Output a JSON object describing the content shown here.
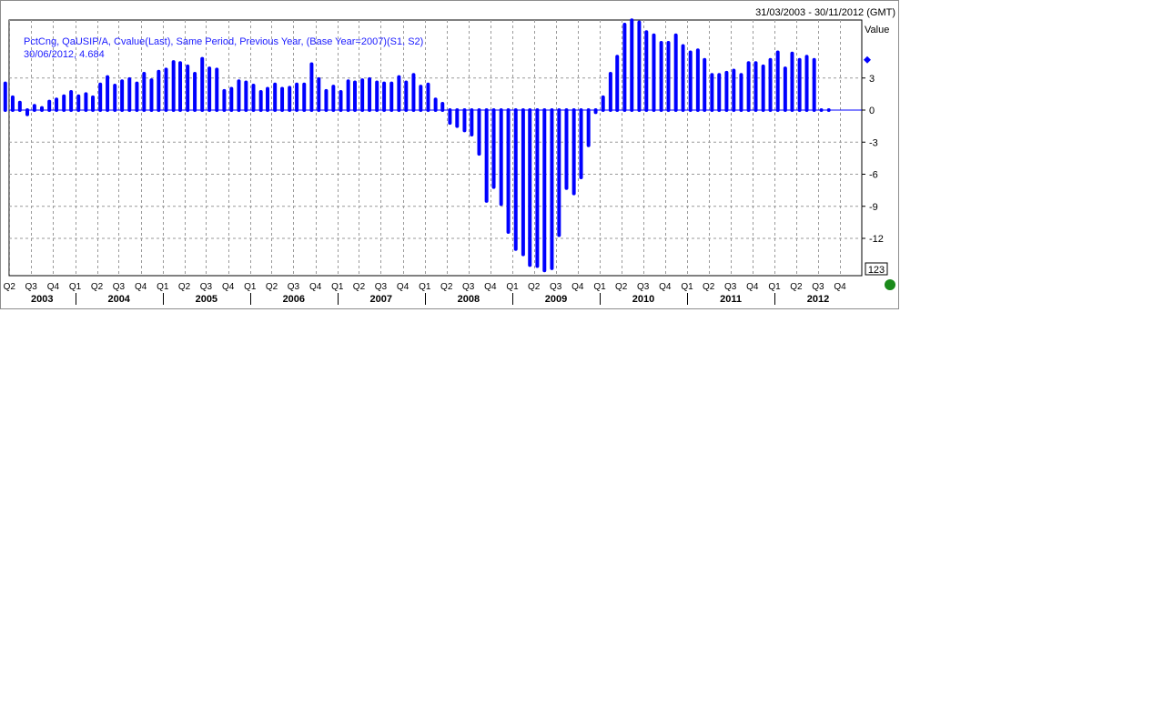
{
  "header": {
    "date_range": "31/03/2003 - 30/11/2012 (GMT)"
  },
  "legend": {
    "series_name": "PctCng, QaUSIP/A, Cvalue(Last), Same Period, Previous Year, (Base Year=2007)(S1, S2)",
    "last_point": "30/06/2012, 4.684"
  },
  "axis": {
    "title": "Value",
    "last_value_box": "123"
  },
  "status_indicator_color": "#1a8a1a",
  "chart_data": {
    "type": "bar",
    "ylim": [
      -15,
      8.5
    ],
    "yticks": [
      3,
      0,
      -3,
      -6,
      -9,
      -12
    ],
    "xlim": [
      "2003-03-31",
      "2012-12-31"
    ],
    "x_tick_labels": [
      {
        "label": "Q2",
        "date": "2003-04-01"
      },
      {
        "label": "Q3",
        "date": "2003-07-01"
      },
      {
        "label": "Q4",
        "date": "2003-10-01"
      },
      {
        "label": "Q1",
        "date": "2004-01-01"
      },
      {
        "label": "Q2",
        "date": "2004-04-01"
      },
      {
        "label": "Q3",
        "date": "2004-07-01"
      },
      {
        "label": "Q4",
        "date": "2004-10-01"
      },
      {
        "label": "Q1",
        "date": "2005-01-01"
      },
      {
        "label": "Q2",
        "date": "2005-04-01"
      },
      {
        "label": "Q3",
        "date": "2005-07-01"
      },
      {
        "label": "Q4",
        "date": "2005-10-01"
      },
      {
        "label": "Q1",
        "date": "2006-01-01"
      },
      {
        "label": "Q2",
        "date": "2006-04-01"
      },
      {
        "label": "Q3",
        "date": "2006-07-01"
      },
      {
        "label": "Q4",
        "date": "2006-10-01"
      },
      {
        "label": "Q1",
        "date": "2007-01-01"
      },
      {
        "label": "Q2",
        "date": "2007-04-01"
      },
      {
        "label": "Q3",
        "date": "2007-07-01"
      },
      {
        "label": "Q4",
        "date": "2007-10-01"
      },
      {
        "label": "Q1",
        "date": "2008-01-01"
      },
      {
        "label": "Q2",
        "date": "2008-04-01"
      },
      {
        "label": "Q3",
        "date": "2008-07-01"
      },
      {
        "label": "Q4",
        "date": "2008-10-01"
      },
      {
        "label": "Q1",
        "date": "2009-01-01"
      },
      {
        "label": "Q2",
        "date": "2009-04-01"
      },
      {
        "label": "Q3",
        "date": "2009-07-01"
      },
      {
        "label": "Q4",
        "date": "2009-10-01"
      },
      {
        "label": "Q1",
        "date": "2010-01-01"
      },
      {
        "label": "Q2",
        "date": "2010-04-01"
      },
      {
        "label": "Q3",
        "date": "2010-07-01"
      },
      {
        "label": "Q4",
        "date": "2010-10-01"
      },
      {
        "label": "Q1",
        "date": "2011-01-01"
      },
      {
        "label": "Q2",
        "date": "2011-04-01"
      },
      {
        "label": "Q3",
        "date": "2011-07-01"
      },
      {
        "label": "Q4",
        "date": "2011-10-01"
      },
      {
        "label": "Q1",
        "date": "2012-01-01"
      },
      {
        "label": "Q2",
        "date": "2012-04-01"
      },
      {
        "label": "Q3",
        "date": "2012-07-01"
      },
      {
        "label": "Q4",
        "date": "2012-10-01"
      }
    ],
    "year_labels": [
      {
        "label": "2003",
        "start": "2003-03-31",
        "end": "2004-01-01"
      },
      {
        "label": "2004",
        "start": "2004-01-01",
        "end": "2005-01-01"
      },
      {
        "label": "2005",
        "start": "2005-01-01",
        "end": "2006-01-01"
      },
      {
        "label": "2006",
        "start": "2006-01-01",
        "end": "2007-01-01"
      },
      {
        "label": "2007",
        "start": "2007-01-01",
        "end": "2008-01-01"
      },
      {
        "label": "2008",
        "start": "2008-01-01",
        "end": "2009-01-01"
      },
      {
        "label": "2009",
        "start": "2009-01-01",
        "end": "2010-01-01"
      },
      {
        "label": "2010",
        "start": "2010-01-01",
        "end": "2011-01-01"
      },
      {
        "label": "2011",
        "start": "2011-01-01",
        "end": "2012-01-01"
      },
      {
        "label": "2012",
        "start": "2012-01-01",
        "end": "2012-12-31"
      }
    ],
    "series": [
      {
        "color": "#0000ff",
        "x": [
          "2003-03",
          "2003-04",
          "2003-05",
          "2003-06",
          "2003-07",
          "2003-08",
          "2003-09",
          "2003-10",
          "2003-11",
          "2003-12",
          "2004-01",
          "2004-02",
          "2004-03",
          "2004-04",
          "2004-05",
          "2004-06",
          "2004-07",
          "2004-08",
          "2004-09",
          "2004-10",
          "2004-11",
          "2004-12",
          "2005-01",
          "2005-02",
          "2005-03",
          "2005-04",
          "2005-05",
          "2005-06",
          "2005-07",
          "2005-08",
          "2005-09",
          "2005-10",
          "2005-11",
          "2005-12",
          "2006-01",
          "2006-02",
          "2006-03",
          "2006-04",
          "2006-05",
          "2006-06",
          "2006-07",
          "2006-08",
          "2006-09",
          "2006-10",
          "2006-11",
          "2006-12",
          "2007-01",
          "2007-02",
          "2007-03",
          "2007-04",
          "2007-05",
          "2007-06",
          "2007-07",
          "2007-08",
          "2007-09",
          "2007-10",
          "2007-11",
          "2007-12",
          "2008-01",
          "2008-02",
          "2008-03",
          "2008-04",
          "2008-05",
          "2008-06",
          "2008-07",
          "2008-08",
          "2008-09",
          "2008-10",
          "2008-11",
          "2008-12",
          "2009-01",
          "2009-02",
          "2009-03",
          "2009-04",
          "2009-05",
          "2009-06",
          "2009-07",
          "2009-08",
          "2009-09",
          "2009-10",
          "2009-11",
          "2009-12",
          "2010-01",
          "2010-02",
          "2010-03",
          "2010-04",
          "2010-05",
          "2010-06",
          "2010-07",
          "2010-08",
          "2010-09",
          "2010-10",
          "2010-11",
          "2010-12",
          "2011-01",
          "2011-02",
          "2011-03",
          "2011-04",
          "2011-05",
          "2011-06",
          "2011-07",
          "2011-08",
          "2011-09",
          "2011-10",
          "2011-11",
          "2011-12",
          "2012-01",
          "2012-02",
          "2012-03",
          "2012-04",
          "2012-05",
          "2012-06",
          "2012-07",
          "2012-08"
        ],
        "values": [
          2.5,
          1.2,
          0.7,
          -0.4,
          0.4,
          0.2,
          0.8,
          1.0,
          1.3,
          1.7,
          1.3,
          1.5,
          1.2,
          2.4,
          3.1,
          2.3,
          2.7,
          2.9,
          2.5,
          3.4,
          2.8,
          3.6,
          3.8,
          4.5,
          4.4,
          4.1,
          3.4,
          4.8,
          3.9,
          3.8,
          1.8,
          2.0,
          2.7,
          2.6,
          2.3,
          1.7,
          2.0,
          2.4,
          2.0,
          2.1,
          2.4,
          2.4,
          4.3,
          2.9,
          1.8,
          2.2,
          1.7,
          2.7,
          2.6,
          2.8,
          2.9,
          2.6,
          2.5,
          2.5,
          3.1,
          2.6,
          3.3,
          2.2,
          2.4,
          1.0,
          0.6,
          -1.2,
          -1.5,
          -1.9,
          -2.3,
          -4.1,
          -8.5,
          -7.2,
          -8.8,
          -11.4,
          -13.0,
          -13.5,
          -14.5,
          -14.6,
          -15.0,
          -14.8,
          -11.7,
          -7.3,
          -7.8,
          -6.3,
          -3.3,
          -0.2,
          1.2,
          3.4,
          5.0,
          8.0,
          8.4,
          8.2,
          7.3,
          7.0,
          6.3,
          6.3,
          7.0,
          6.0,
          5.4,
          5.6,
          4.7,
          3.3,
          3.3,
          3.5,
          3.7,
          3.3,
          4.4,
          4.4,
          4.1,
          4.7,
          5.4,
          3.9,
          5.3,
          4.7,
          5.0,
          4.7,
          0,
          0
        ]
      }
    ]
  }
}
